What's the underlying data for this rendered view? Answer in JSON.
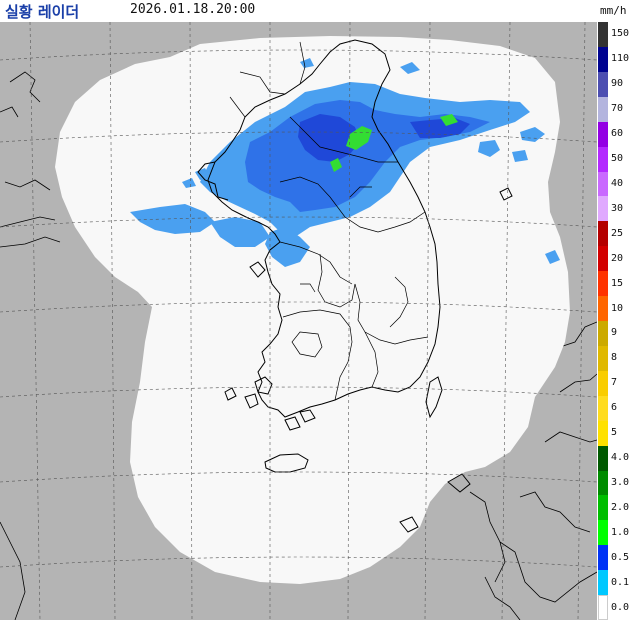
{
  "header": {
    "title": "실황 레이더",
    "timestamp": "2026.01.18.20:00",
    "unit": "mm/h"
  },
  "legend": {
    "items": [
      {
        "label": "150",
        "color": "#333333"
      },
      {
        "label": "110",
        "color": "#000390"
      },
      {
        "label": "90",
        "color": "#4c4eb1"
      },
      {
        "label": "70",
        "color": "#b3b4de"
      },
      {
        "label": "60",
        "color": "#9300e4"
      },
      {
        "label": "50",
        "color": "#b329ff"
      },
      {
        "label": "40",
        "color": "#c969ff"
      },
      {
        "label": "30",
        "color": "#e0a9ff"
      },
      {
        "label": "25",
        "color": "#b40000"
      },
      {
        "label": "20",
        "color": "#d20000"
      },
      {
        "label": "15",
        "color": "#ff3300"
      },
      {
        "label": "10",
        "color": "#ff6600"
      },
      {
        "label": "9",
        "color": "#ccaa00"
      },
      {
        "label": "8",
        "color": "#e0b900"
      },
      {
        "label": "7",
        "color": "#f9cd00"
      },
      {
        "label": "6",
        "color": "#ffdc1f"
      },
      {
        "label": "5",
        "color": "#ffe100"
      },
      {
        "label": "4.0",
        "color": "#005a00"
      },
      {
        "label": "3.0",
        "color": "#008c00"
      },
      {
        "label": "2.0",
        "color": "#00be00"
      },
      {
        "label": "1.0",
        "color": "#00ff00"
      },
      {
        "label": "0.5",
        "color": "#0033f5"
      },
      {
        "label": "0.1",
        "color": "#00c8ff"
      },
      {
        "label": "0.0",
        "color": "#ffffff"
      }
    ]
  },
  "colors": {
    "outside_coverage": "#b4b4b4",
    "coverage": "#f8f8f8",
    "coastline": "#000000",
    "grid": "#555555",
    "echo_light": "#4aa0f0",
    "echo_medium": "#2f72e8",
    "echo_heavy": "#1f48d8",
    "echo_green": "#33dd33"
  }
}
